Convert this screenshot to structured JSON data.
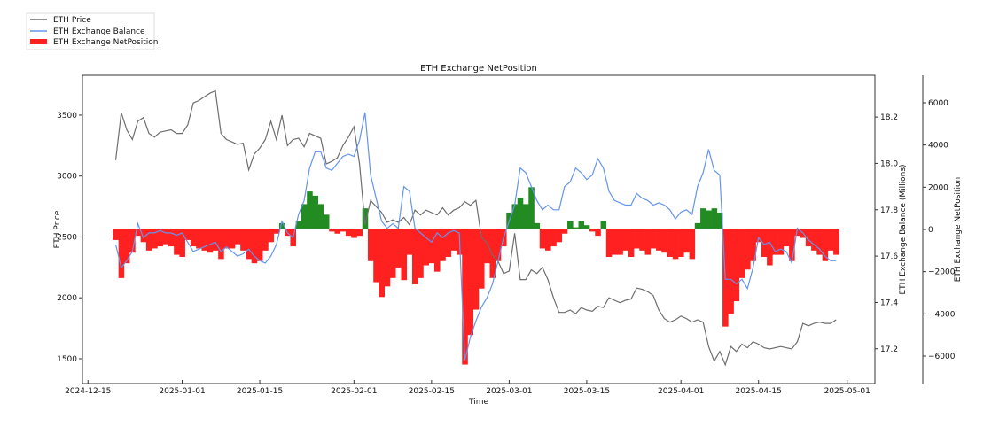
{
  "chart_data": {
    "type": "line",
    "title": "ETH Exchange NetPosition",
    "xlabel": "Time",
    "ylabel_left": "ETH Price",
    "ylabel_right": "ETH Exchange Balance (Millions)",
    "ylabel_right2": "ETH Exchange NetPosition",
    "legend_placement": "top-left (outside)",
    "x_start_date": "2024-12-20",
    "x_step": "1 day",
    "xlim": [
      "2024-12-14",
      "2025-05-06"
    ],
    "x_ticks": [
      {
        "date": "2024-12-15",
        "label": "2024-12-15"
      },
      {
        "date": "2025-01-01",
        "label": "2025-01-01"
      },
      {
        "date": "2025-01-15",
        "label": "2025-01-15"
      },
      {
        "date": "2025-02-01",
        "label": "2025-02-01"
      },
      {
        "date": "2025-02-15",
        "label": "2025-02-15"
      },
      {
        "date": "2025-03-01",
        "label": "2025-03-01"
      },
      {
        "date": "2025-03-15",
        "label": "2025-03-15"
      },
      {
        "date": "2025-04-01",
        "label": "2025-04-01"
      },
      {
        "date": "2025-04-15",
        "label": "2025-04-15"
      },
      {
        "date": "2025-05-01",
        "label": "2025-05-01"
      }
    ],
    "ylim_price": [
      1296,
      3827
    ],
    "y_ticks_price": [
      {
        "v": 1500,
        "label": "1500"
      },
      {
        "v": 2000,
        "label": "2000"
      },
      {
        "v": 2500,
        "label": "2500"
      },
      {
        "v": 3000,
        "label": "3000"
      },
      {
        "v": 3500,
        "label": "3500"
      }
    ],
    "ylim_balance": [
      17.05,
      18.38
    ],
    "y_ticks_balance": [
      {
        "v": 17.2,
        "label": "17.2"
      },
      {
        "v": 17.4,
        "label": "17.4"
      },
      {
        "v": 17.6,
        "label": "17.6"
      },
      {
        "v": 17.8,
        "label": "17.8"
      },
      {
        "v": 18.0,
        "label": "18.0"
      },
      {
        "v": 18.2,
        "label": "18.2"
      }
    ],
    "ylim_net": [
      -7300,
      7300
    ],
    "y_ticks_net": [
      {
        "v": 6000,
        "label": "6000"
      },
      {
        "v": 4000,
        "label": "4000"
      },
      {
        "v": 2000,
        "label": "2000"
      },
      {
        "v": 0,
        "label": "0"
      },
      {
        "v": -2000,
        "label": "−2000"
      },
      {
        "v": -4000,
        "label": "−4000"
      },
      {
        "v": -6000,
        "label": "−6000"
      }
    ],
    "series": [
      {
        "name": "ETH Price",
        "color": "#6e6e6e",
        "axis": "price",
        "kind": "line",
        "values": [
          3130,
          3520,
          3380,
          3300,
          3450,
          3480,
          3350,
          3320,
          3360,
          3370,
          3380,
          3350,
          3350,
          3420,
          3600,
          3620,
          3650,
          3680,
          3700,
          3350,
          3300,
          3280,
          3260,
          3270,
          3050,
          3180,
          3230,
          3300,
          3450,
          3300,
          3500,
          3250,
          3300,
          3310,
          3240,
          3350,
          3330,
          3310,
          3100,
          3120,
          3150,
          3250,
          3320,
          3405,
          3100,
          2600,
          2800,
          2750,
          2700,
          2620,
          2640,
          2620,
          2660,
          2600,
          2720,
          2680,
          2720,
          2700,
          2680,
          2740,
          2680,
          2720,
          2740,
          2790,
          2760,
          2800,
          2500,
          2450,
          2350,
          2300,
          2200,
          2220,
          2530,
          2150,
          2150,
          2230,
          2200,
          2250,
          2150,
          2000,
          1880,
          1880,
          1900,
          1870,
          1920,
          1900,
          1890,
          1930,
          1920,
          2000,
          1980,
          1960,
          1980,
          1990,
          2080,
          2070,
          2050,
          2020,
          1900,
          1830,
          1800,
          1820,
          1850,
          1830,
          1800,
          1820,
          1800,
          1600,
          1480,
          1560,
          1450,
          1600,
          1560,
          1620,
          1590,
          1640,
          1620,
          1590,
          1580,
          1590,
          1600,
          1590,
          1580,
          1640,
          1790,
          1770,
          1790,
          1800,
          1790,
          1790,
          1820
        ]
      },
      {
        "name": "ETH Exchange Balance",
        "color": "#6495ed",
        "axis": "balance",
        "kind": "line",
        "values": [
          17.65,
          17.55,
          17.58,
          17.62,
          17.74,
          17.68,
          17.7,
          17.7,
          17.71,
          17.7,
          17.7,
          17.69,
          17.7,
          17.66,
          17.62,
          17.63,
          17.64,
          17.65,
          17.66,
          17.62,
          17.64,
          17.62,
          17.6,
          17.61,
          17.63,
          17.6,
          17.58,
          17.57,
          17.6,
          17.65,
          17.75,
          17.7,
          17.68,
          17.78,
          17.84,
          17.98,
          18.05,
          18.05,
          17.98,
          17.97,
          18.0,
          18.03,
          18.04,
          18.03,
          18.1,
          18.22,
          17.95,
          17.85,
          17.75,
          17.72,
          17.74,
          17.72,
          17.9,
          17.88,
          17.72,
          17.7,
          17.68,
          17.66,
          17.7,
          17.68,
          17.7,
          17.71,
          17.7,
          17.15,
          17.25,
          17.32,
          17.38,
          17.42,
          17.48,
          17.58,
          17.68,
          17.75,
          17.82,
          17.98,
          17.96,
          17.9,
          17.84,
          17.8,
          17.82,
          17.8,
          17.8,
          17.9,
          17.92,
          17.98,
          17.96,
          17.93,
          17.95,
          18.02,
          17.98,
          17.88,
          17.84,
          17.83,
          17.82,
          17.82,
          17.87,
          17.85,
          17.84,
          17.82,
          17.83,
          17.82,
          17.8,
          17.76,
          17.79,
          17.8,
          17.78,
          17.9,
          17.96,
          18.06,
          17.97,
          17.95,
          17.5,
          17.5,
          17.48,
          17.5,
          17.46,
          17.55,
          17.68,
          17.65,
          17.66,
          17.62,
          17.63,
          17.62,
          17.57,
          17.72,
          17.7,
          17.67,
          17.65,
          17.63,
          17.6,
          17.58,
          17.58
        ]
      },
      {
        "name": "ETH Exchange NetPosition",
        "color": "#ff2020",
        "positive_color": "#228b22",
        "axis": "net",
        "kind": "bar",
        "values": [
          -500,
          -2300,
          -1600,
          -1100,
          -300,
          -600,
          -1000,
          -900,
          -800,
          -700,
          -800,
          -1200,
          -1300,
          -500,
          -800,
          -900,
          -1000,
          -1100,
          -1000,
          -1400,
          -900,
          -900,
          -700,
          -1000,
          -1400,
          -1600,
          -1500,
          -1000,
          -600,
          -200,
          300,
          -300,
          -800,
          400,
          1200,
          1800,
          1600,
          1200,
          700,
          -100,
          -200,
          -100,
          -300,
          -400,
          -300,
          1000,
          -1500,
          -2500,
          -3200,
          -2700,
          -2300,
          -1800,
          -2400,
          -1200,
          -2600,
          -2300,
          -1700,
          -1600,
          -2000,
          -1500,
          -1300,
          -1000,
          -1200,
          -6400,
          -5000,
          -3800,
          -2800,
          -1600,
          -2300,
          -1500,
          -800,
          800,
          1200,
          1500,
          1200,
          2000,
          300,
          -900,
          -1000,
          -800,
          -600,
          -200,
          400,
          100,
          400,
          200,
          -100,
          -300,
          400,
          -1300,
          -1200,
          -1200,
          -1000,
          -1300,
          -900,
          -1000,
          -1200,
          -900,
          -1000,
          -1100,
          -1300,
          -1400,
          -1300,
          -1100,
          -1400,
          300,
          1000,
          900,
          1000,
          800,
          -4600,
          -4000,
          -3400,
          -2300,
          -1900,
          -1500,
          -600,
          -1300,
          -1700,
          -1200,
          -1200,
          -800,
          -1500,
          -300,
          -400,
          -800,
          -1000,
          -1200,
          -1500,
          -1000,
          -1200
        ]
      }
    ]
  }
}
